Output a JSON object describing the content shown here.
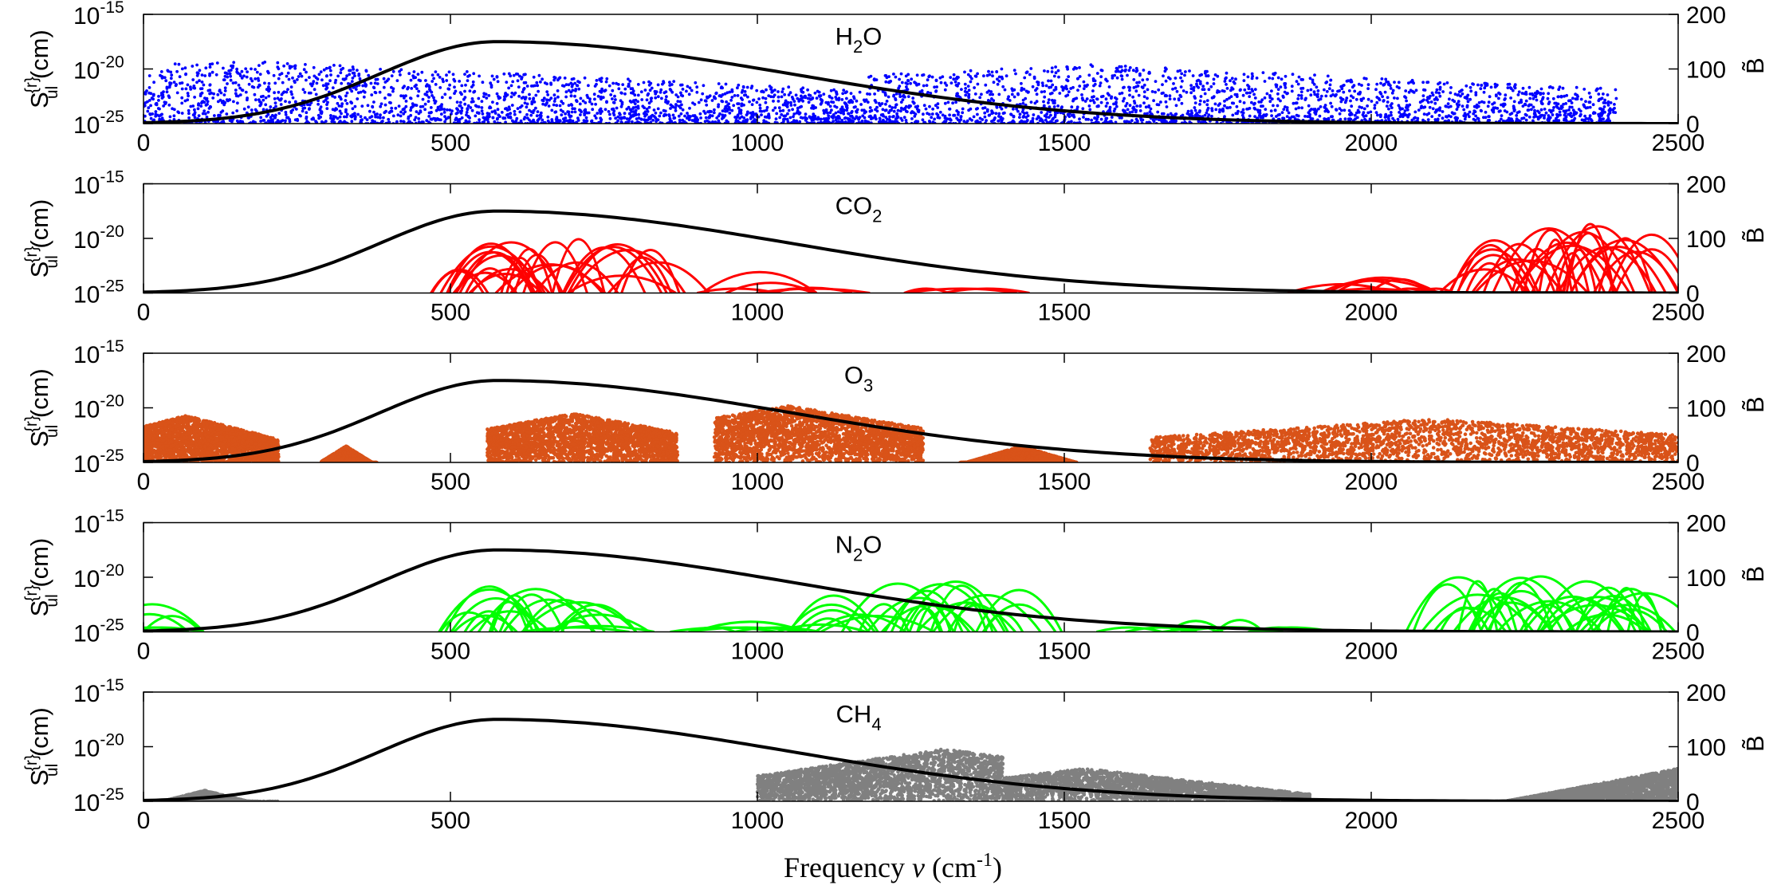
{
  "figure": {
    "xlabel_prefix": "Frequency ",
    "xlabel_symbol": "ν",
    "xlabel_unit_open": " (cm",
    "xlabel_unit_sup": "-1",
    "xlabel_unit_close": ")"
  },
  "axes": {
    "ylabel_S": "S",
    "ylabel_sup": "{r}",
    "ylabel_sub": "ul",
    "ylabel_unit": " (cm)",
    "right_label": "B̃",
    "left_tick_base": "10",
    "left_tick_exponents": [
      "-15",
      "-20",
      "-25"
    ],
    "right_ticks": [
      "200",
      "100",
      "0"
    ],
    "x_ticks": [
      "0",
      "500",
      "1000",
      "1500",
      "2000",
      "2500"
    ]
  },
  "chart_data": [
    {
      "type": "scatter",
      "panel_title": "H2O",
      "title_main": "H",
      "title_sub": "2",
      "title_tail": "O",
      "color": "#0000ff",
      "style": "dots",
      "xlim": [
        0,
        2500
      ],
      "ylim_log10": [
        -25,
        -15
      ],
      "y2lim": [
        0,
        200
      ],
      "ylabel": "S_ul^{r} (cm)",
      "y2label": "B̃",
      "xlabel": "Frequency ν (cm-1)",
      "envelopes": [
        {
          "from": 0,
          "to": 1180,
          "peak_at": 150,
          "top_log": -19.2,
          "density": 0.95
        },
        {
          "from": 1180,
          "to": 2400,
          "peak_at": 1550,
          "top_log": -19.6,
          "density": 0.9
        }
      ],
      "curve": {
        "name": "B̃",
        "peak_x": 575,
        "peak_y": 150
      }
    },
    {
      "type": "line",
      "panel_title": "CO2",
      "title_main": "CO",
      "title_sub": "2",
      "title_tail": "",
      "color": "#ff0000",
      "style": "arches",
      "xlim": [
        0,
        2500
      ],
      "ylim_log10": [
        -25,
        -15
      ],
      "y2lim": [
        0,
        200
      ],
      "bands": [
        {
          "from": 500,
          "to": 850,
          "peak_at": 667,
          "top_log": -19.2,
          "count": 28
        },
        {
          "from": 900,
          "to": 1100,
          "peak_at": 1000,
          "top_log": -22.5,
          "count": 6
        },
        {
          "from": 1230,
          "to": 1400,
          "peak_at": 1300,
          "top_log": -24.0,
          "count": 3
        },
        {
          "from": 1850,
          "to": 2130,
          "peak_at": 2000,
          "top_log": -22.3,
          "count": 10
        },
        {
          "from": 2180,
          "to": 2460,
          "peak_at": 2350,
          "top_log": -18.0,
          "count": 28
        }
      ],
      "curve": {
        "name": "B̃",
        "peak_x": 575,
        "peak_y": 150
      }
    },
    {
      "type": "scatter",
      "panel_title": "O3",
      "title_main": "O",
      "title_sub": "3",
      "title_tail": "",
      "color": "#d95319",
      "style": "dense",
      "xlim": [
        0,
        2500
      ],
      "ylim_log10": [
        -25,
        -15
      ],
      "y2lim": [
        0,
        200
      ],
      "bands": [
        {
          "from": 0,
          "to": 220,
          "peak_at": 70,
          "top_log": -20.7
        },
        {
          "from": 290,
          "to": 380,
          "peak_at": 330,
          "top_log": -23.5
        },
        {
          "from": 560,
          "to": 870,
          "peak_at": 700,
          "top_log": -20.5
        },
        {
          "from": 930,
          "to": 1270,
          "peak_at": 1050,
          "top_log": -19.8
        },
        {
          "from": 1330,
          "to": 1520,
          "peak_at": 1430,
          "top_log": -23.5
        },
        {
          "from": 1640,
          "to": 2500,
          "peak_at": 2100,
          "top_log": -21.0
        }
      ],
      "curve": {
        "name": "B̃",
        "peak_x": 575,
        "peak_y": 150
      }
    },
    {
      "type": "line",
      "panel_title": "N2O",
      "title_main": "N",
      "title_sub": "2",
      "title_tail": "O",
      "color": "#00ff00",
      "style": "arches",
      "xlim": [
        0,
        2500
      ],
      "ylim_log10": [
        -25,
        -15
      ],
      "y2lim": [
        0,
        200
      ],
      "bands": [
        {
          "from": 0,
          "to": 50,
          "peak_at": 20,
          "top_log": -21.5,
          "count": 5
        },
        {
          "from": 520,
          "to": 750,
          "peak_at": 590,
          "top_log": -20.0,
          "count": 20
        },
        {
          "from": 880,
          "to": 1060,
          "peak_at": 960,
          "top_log": -23.0,
          "count": 5
        },
        {
          "from": 1100,
          "to": 1430,
          "peak_at": 1300,
          "top_log": -19.5,
          "count": 25
        },
        {
          "from": 1590,
          "to": 1900,
          "peak_at": 1750,
          "top_log": -23.0,
          "count": 10
        },
        {
          "from": 2100,
          "to": 2500,
          "peak_at": 2220,
          "top_log": -19.0,
          "count": 30
        }
      ],
      "curve": {
        "name": "B̃",
        "peak_x": 575,
        "peak_y": 150
      }
    },
    {
      "type": "scatter",
      "panel_title": "CH4",
      "title_main": "CH",
      "title_sub": "4",
      "title_tail": "",
      "color": "#808080",
      "style": "dense",
      "xlim": [
        0,
        2500
      ],
      "ylim_log10": [
        -25,
        -15
      ],
      "y2lim": [
        0,
        200
      ],
      "bands": [
        {
          "from": 0,
          "to": 220,
          "peak_at": 100,
          "top_log": -24.0
        },
        {
          "from": 1000,
          "to": 1400,
          "peak_at": 1306,
          "top_log": -20.2
        },
        {
          "from": 1400,
          "to": 1900,
          "peak_at": 1533,
          "top_log": -22.0
        },
        {
          "from": 2200,
          "to": 2500,
          "peak_at": 2500,
          "top_log": -22.0
        }
      ],
      "curve": {
        "name": "B̃",
        "peak_x": 575,
        "peak_y": 150
      }
    }
  ]
}
